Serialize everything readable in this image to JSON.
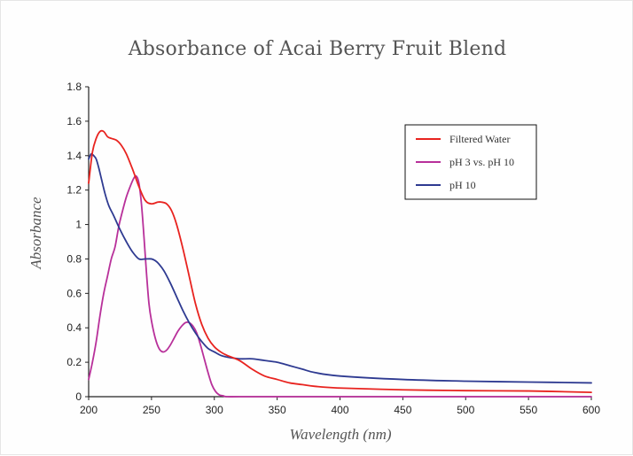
{
  "chart_data": {
    "type": "line",
    "title": "Absorbance of Acai Berry Fruit Blend",
    "xlabel": "Wavelength (nm)",
    "ylabel": "Absorbance",
    "xlim": [
      200,
      600
    ],
    "ylim": [
      0,
      1.8
    ],
    "x_ticks": [
      "200",
      "250",
      "300",
      "350",
      "400",
      "450",
      "500",
      "550",
      "600"
    ],
    "y_ticks": [
      "0",
      "0.2",
      "0.4",
      "0.6",
      "0.8",
      "1",
      "1.2",
      "1.4",
      "1.6",
      "1.8"
    ],
    "grid": false,
    "legend_position": "top-right",
    "series": [
      {
        "name": "Filtered Water",
        "color": "#e8231f",
        "x": [
          200,
          203,
          206,
          209,
          212,
          215,
          218,
          222,
          226,
          230,
          235,
          240,
          245,
          250,
          255,
          258,
          262,
          266,
          270,
          275,
          280,
          285,
          290,
          295,
          300,
          305,
          310,
          320,
          330,
          340,
          350,
          360,
          370,
          380,
          400,
          450,
          500,
          550,
          600
        ],
        "y": [
          1.24,
          1.42,
          1.5,
          1.54,
          1.54,
          1.51,
          1.5,
          1.49,
          1.46,
          1.41,
          1.32,
          1.22,
          1.14,
          1.12,
          1.13,
          1.13,
          1.12,
          1.08,
          1.0,
          0.86,
          0.7,
          0.54,
          0.42,
          0.34,
          0.29,
          0.26,
          0.24,
          0.21,
          0.16,
          0.12,
          0.1,
          0.08,
          0.07,
          0.06,
          0.05,
          0.04,
          0.035,
          0.033,
          0.025
        ]
      },
      {
        "name": "pH 3 vs. pH 10",
        "color": "#b8309a",
        "x": [
          200,
          203,
          206,
          209,
          212,
          215,
          218,
          221,
          224,
          227,
          230,
          233,
          236,
          238,
          240,
          242,
          244,
          246,
          248,
          250,
          253,
          256,
          259,
          262,
          265,
          268,
          271,
          274,
          277,
          280,
          283,
          286,
          289,
          292,
          295,
          298,
          301,
          304,
          307,
          310,
          320,
          350,
          400,
          450,
          500,
          550,
          600
        ],
        "y": [
          0.1,
          0.2,
          0.32,
          0.47,
          0.6,
          0.7,
          0.8,
          0.87,
          0.99,
          1.08,
          1.16,
          1.22,
          1.27,
          1.28,
          1.24,
          1.12,
          0.93,
          0.72,
          0.54,
          0.44,
          0.34,
          0.28,
          0.26,
          0.27,
          0.3,
          0.34,
          0.38,
          0.41,
          0.43,
          0.43,
          0.41,
          0.37,
          0.3,
          0.22,
          0.14,
          0.07,
          0.03,
          0.01,
          0.005,
          0.0,
          0.0,
          0.0,
          0.0,
          0.0,
          0.0,
          0.0,
          0.0
        ]
      },
      {
        "name": "pH 10",
        "color": "#2e3a91",
        "x": [
          200,
          202,
          204,
          206,
          208,
          210,
          213,
          216,
          220,
          225,
          230,
          235,
          240,
          245,
          250,
          253,
          256,
          260,
          265,
          270,
          275,
          280,
          285,
          290,
          295,
          300,
          305,
          310,
          320,
          330,
          340,
          350,
          360,
          370,
          380,
          400,
          450,
          500,
          550,
          600
        ],
        "y": [
          1.38,
          1.41,
          1.4,
          1.38,
          1.33,
          1.27,
          1.18,
          1.11,
          1.05,
          0.97,
          0.9,
          0.84,
          0.8,
          0.8,
          0.8,
          0.79,
          0.77,
          0.73,
          0.66,
          0.58,
          0.5,
          0.43,
          0.37,
          0.32,
          0.28,
          0.26,
          0.24,
          0.23,
          0.22,
          0.22,
          0.21,
          0.2,
          0.18,
          0.16,
          0.14,
          0.12,
          0.1,
          0.09,
          0.085,
          0.08
        ]
      }
    ]
  }
}
